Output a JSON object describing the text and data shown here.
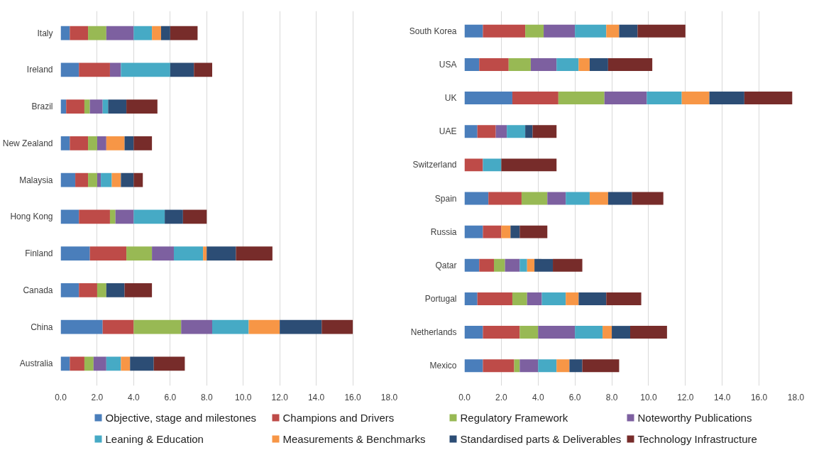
{
  "chart_data": [
    {
      "type": "bar",
      "orientation": "horizontal",
      "stacked": true,
      "legend": "bottom",
      "grid": "x",
      "categories": [
        "Italy",
        "Ireland",
        "Brazil",
        "New Zealand",
        "Malaysia",
        "Hong Kong",
        "Finland",
        "Canada",
        "China",
        "Australia"
      ],
      "xlim": [
        0,
        18
      ],
      "xticks": [
        {
          "value": 0,
          "label": "0.0"
        },
        {
          "value": 2,
          "label": "2.0"
        },
        {
          "value": 4,
          "label": "4.0"
        },
        {
          "value": 6,
          "label": "6.0"
        },
        {
          "value": 8,
          "label": "8.0"
        },
        {
          "value": 10,
          "label": "10.0"
        },
        {
          "value": 12,
          "label": "12.0"
        },
        {
          "value": 14,
          "label": "14.0"
        },
        {
          "value": 16,
          "label": "16.0"
        },
        {
          "value": 18,
          "label": "18.0"
        }
      ],
      "series": [
        {
          "name": "Objective, stage and milestones",
          "color": "#4a7ebb",
          "values": [
            0.5,
            1.0,
            0.3,
            0.5,
            0.8,
            1.0,
            1.6,
            1.0,
            2.3,
            0.5
          ]
        },
        {
          "name": "Champions and Drivers",
          "color": "#be4b48",
          "values": [
            1.0,
            1.7,
            1.0,
            1.0,
            0.7,
            1.7,
            2.0,
            1.0,
            1.7,
            0.8
          ]
        },
        {
          "name": "Regulatory Framework",
          "color": "#98b954",
          "values": [
            1.0,
            0,
            0.3,
            0.5,
            0.5,
            0.3,
            1.4,
            0.5,
            2.6,
            0.5
          ]
        },
        {
          "name": "Noteworthy Publications",
          "color": "#7d60a0",
          "values": [
            1.5,
            0.6,
            0.7,
            0.5,
            0.2,
            1.0,
            1.2,
            0,
            1.7,
            0.7
          ]
        },
        {
          "name": "Leaning & Education",
          "color": "#46aac5",
          "values": [
            1.0,
            2.7,
            0.3,
            0,
            0.6,
            1.7,
            1.6,
            0,
            2.0,
            0.8
          ]
        },
        {
          "name": "Measurements & Benchmarks",
          "color": "#f79646",
          "values": [
            0.5,
            0,
            0,
            1.0,
            0.5,
            0,
            0.2,
            0,
            1.7,
            0.5
          ]
        },
        {
          "name": "Standardised parts & Deliverables",
          "color": "#2c4d75",
          "values": [
            0.5,
            1.3,
            1.0,
            0.5,
            0.7,
            1.0,
            1.6,
            1.0,
            2.3,
            1.3
          ]
        },
        {
          "name": "Technology Infrastructure",
          "color": "#772c2a",
          "values": [
            1.5,
            1.0,
            1.7,
            1.0,
            0.5,
            1.3,
            2.0,
            1.5,
            1.7,
            1.7
          ]
        }
      ]
    },
    {
      "type": "bar",
      "orientation": "horizontal",
      "stacked": true,
      "grid": "x",
      "categories": [
        "South Korea",
        "USA",
        "UK",
        "UAE",
        "Switzerland",
        "Spain",
        "Russia",
        "Qatar",
        "Portugal",
        "Netherlands",
        "Mexico"
      ],
      "xlim": [
        0,
        18
      ],
      "xticks": [
        {
          "value": 0,
          "label": "0.0"
        },
        {
          "value": 2,
          "label": "2.0"
        },
        {
          "value": 4,
          "label": "4.0"
        },
        {
          "value": 6,
          "label": "6.0"
        },
        {
          "value": 8,
          "label": "8.0"
        },
        {
          "value": 10,
          "label": "10.0"
        },
        {
          "value": 12,
          "label": "12.0"
        },
        {
          "value": 14,
          "label": "14.0"
        },
        {
          "value": 16,
          "label": "16.0"
        },
        {
          "value": 18,
          "label": "18.0"
        }
      ],
      "series": [
        {
          "color": "#4a7ebb",
          "values": [
            1.0,
            0.8,
            2.6,
            0.7,
            0,
            1.3,
            1.0,
            0.8,
            0.7,
            1.0,
            1.0
          ]
        },
        {
          "color": "#be4b48",
          "values": [
            2.3,
            1.6,
            2.5,
            1.0,
            1.0,
            1.8,
            1.0,
            0.8,
            1.9,
            2.0,
            1.7
          ]
        },
        {
          "color": "#98b954",
          "values": [
            1.0,
            1.2,
            2.5,
            0,
            0,
            1.4,
            0,
            0.6,
            0.8,
            1.0,
            0.3
          ]
        },
        {
          "color": "#7d60a0",
          "values": [
            1.7,
            1.4,
            2.3,
            0.6,
            0,
            1.0,
            0,
            0.8,
            0.8,
            2.0,
            1.0
          ]
        },
        {
          "color": "#46aac5",
          "values": [
            1.7,
            1.2,
            1.9,
            1.0,
            1.0,
            1.3,
            0,
            0.4,
            1.3,
            1.5,
            1.0
          ]
        },
        {
          "color": "#f79646",
          "values": [
            0.7,
            0.6,
            1.5,
            0,
            0,
            1.0,
            0.5,
            0.4,
            0.7,
            0.5,
            0.7
          ]
        },
        {
          "color": "#2c4d75",
          "values": [
            1.0,
            1.0,
            1.9,
            0.4,
            0,
            1.3,
            0.5,
            1.0,
            1.5,
            1.0,
            0.7
          ]
        },
        {
          "color": "#772c2a",
          "values": [
            2.6,
            2.4,
            2.6,
            1.3,
            3.0,
            1.7,
            1.5,
            1.6,
            1.9,
            2.0,
            2.0
          ]
        }
      ]
    }
  ]
}
